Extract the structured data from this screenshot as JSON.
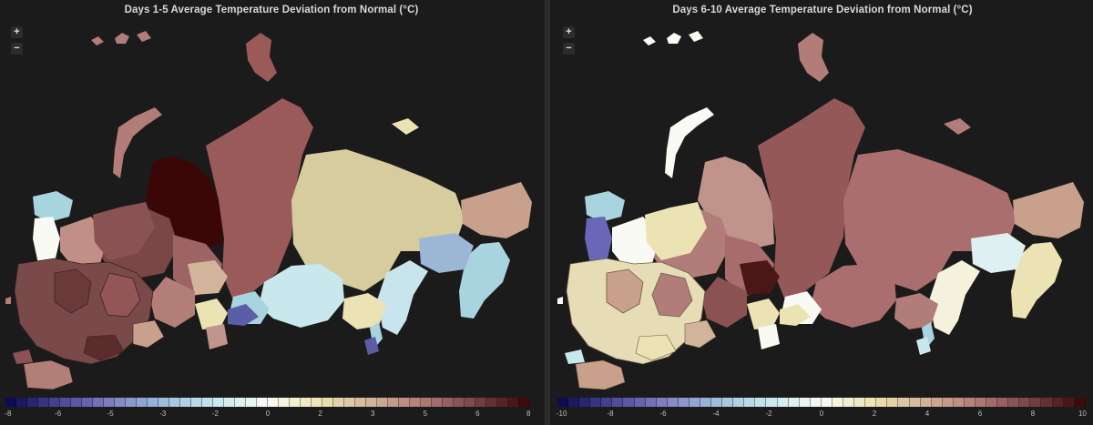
{
  "panels": [
    {
      "title": "Days 1-5 Average Temperature Deviation from Normal (°C)",
      "zoom_in": "+",
      "zoom_out": "−",
      "legend": {
        "min": -8,
        "max": 8,
        "tick_labels": [
          "-8",
          "-6",
          "-5",
          "-3",
          "-2",
          "0",
          "2",
          "3",
          "5",
          "6",
          "8"
        ]
      }
    },
    {
      "title": "Days 6-10 Average Temperature Deviation from Normal (°C)",
      "zoom_in": "+",
      "zoom_out": "−",
      "legend": {
        "min": -10,
        "max": 10,
        "tick_labels": [
          "-10",
          "-8",
          "-6",
          "-4",
          "-2",
          "0",
          "2",
          "4",
          "6",
          "8",
          "10"
        ]
      }
    }
  ],
  "colors": {
    "background": "#1b1b1b",
    "scale": [
      "#0c0c52",
      "#4a4a9a",
      "#8282c4",
      "#9fc0dc",
      "#c8e8ee",
      "#fafaf5",
      "#ece3b4",
      "#d2b49a",
      "#b27c78",
      "#7a4646",
      "#3a0c0c"
    ]
  }
}
